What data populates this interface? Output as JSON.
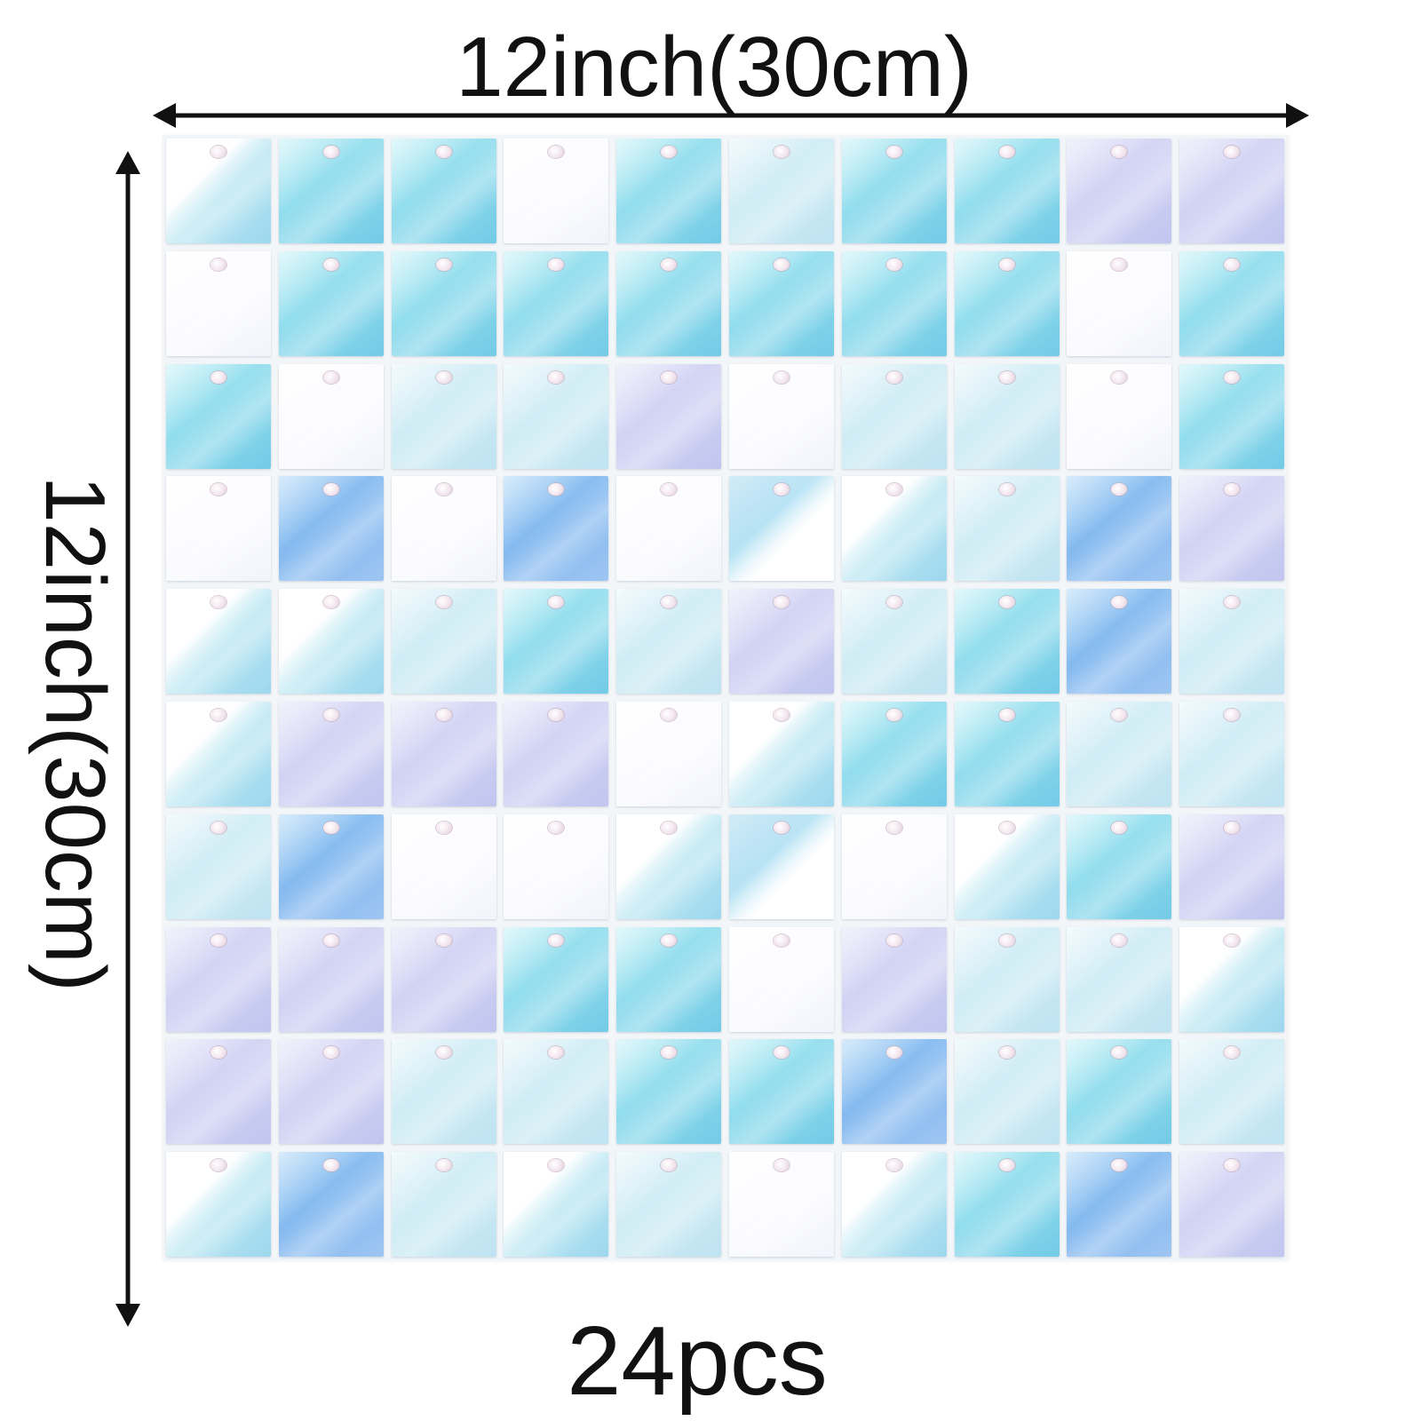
{
  "labels": {
    "width": "12inch(30cm)",
    "height": "12inch(30cm)",
    "count": "24pcs"
  },
  "colors": {
    "text": "#111111",
    "arrow": "#111111",
    "background": "#ffffff"
  },
  "sequin_panel": {
    "rows": 10,
    "cols": 10,
    "grid": [
      [
        "mix",
        "cyan",
        "cyan",
        "white",
        "cyan",
        "pale",
        "cyan",
        "cyan",
        "lilac",
        "lilac"
      ],
      [
        "white",
        "cyan",
        "cyan",
        "cyan",
        "cyan",
        "cyan",
        "cyan",
        "cyan",
        "white",
        "cyan"
      ],
      [
        "cyan",
        "white",
        "pale",
        "pale",
        "lilac",
        "white",
        "pale",
        "pale",
        "white",
        "cyan"
      ],
      [
        "white",
        "blue",
        "white",
        "blue",
        "white",
        "mix2",
        "mix",
        "pale",
        "blue",
        "lilac"
      ],
      [
        "mix",
        "mix",
        "pale",
        "cyan",
        "pale",
        "lilac",
        "pale",
        "cyan",
        "blue",
        "pale"
      ],
      [
        "mix",
        "lilac",
        "lilac",
        "lilac",
        "white",
        "mix",
        "cyan",
        "cyan",
        "pale",
        "pale"
      ],
      [
        "pale",
        "blue",
        "white",
        "white",
        "mix",
        "mix2",
        "white",
        "mix",
        "cyan",
        "lilac"
      ],
      [
        "lilac",
        "lilac",
        "lilac",
        "cyan",
        "cyan",
        "white",
        "lilac",
        "pale",
        "pale",
        "mix"
      ],
      [
        "lilac",
        "lilac",
        "pale",
        "pale",
        "cyan",
        "cyan",
        "blue",
        "pale",
        "cyan",
        "pale"
      ],
      [
        "mix",
        "blue",
        "pale",
        "mix",
        "pale",
        "white",
        "mix",
        "cyan",
        "blue",
        "lilac"
      ]
    ]
  }
}
